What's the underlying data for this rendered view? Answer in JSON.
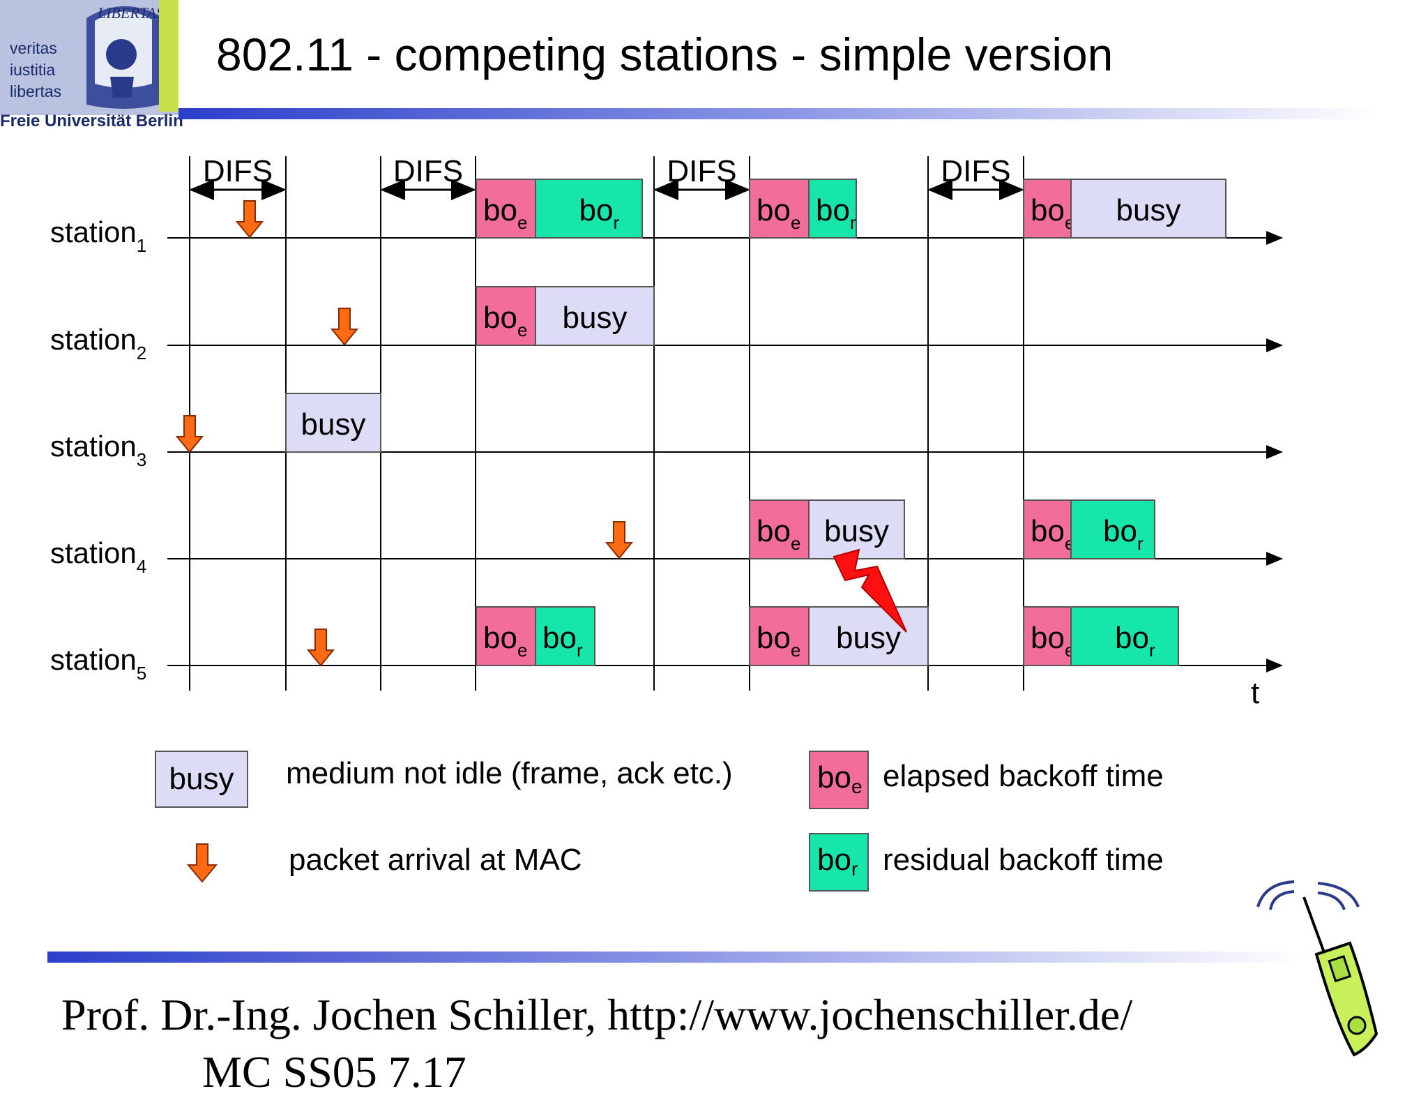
{
  "slide": {
    "title": "802.11 - competing stations - simple version",
    "logo": {
      "words": [
        "veritas",
        "iustitia",
        "libertas"
      ],
      "seal_text": "LIBERTAS",
      "caption": "Freie Universität Berlin"
    },
    "footer": "Prof. Dr.-Ing. Jochen Schiller, http://www.jochenschiller.de/",
    "footer_line2": "MC SS05          7.17"
  },
  "diagram": {
    "time_label": "t",
    "difs_label": "DIFS",
    "stations": [
      {
        "name": "station",
        "sub": "1"
      },
      {
        "name": "station",
        "sub": "2"
      },
      {
        "name": "station",
        "sub": "3"
      },
      {
        "name": "station",
        "sub": "4"
      },
      {
        "name": "station",
        "sub": "5"
      }
    ],
    "labels": {
      "busy": "busy",
      "bo": "bo",
      "e": "e",
      "r": "r"
    }
  },
  "legend": {
    "busy_box": "busy",
    "busy_desc": "medium not idle (frame, ack etc.)",
    "arrival_desc": "packet arrival at MAC",
    "boe_desc": "elapsed backoff time",
    "bor_desc": "residual backoff time"
  },
  "colors": {
    "busy": "#dcdcf6",
    "bo_e": "#f36d9a",
    "bo_r": "#17e6aa",
    "arrow": "#ff6a13",
    "lightning": "#ff1010",
    "logo_blue": "#2a3a8a"
  }
}
